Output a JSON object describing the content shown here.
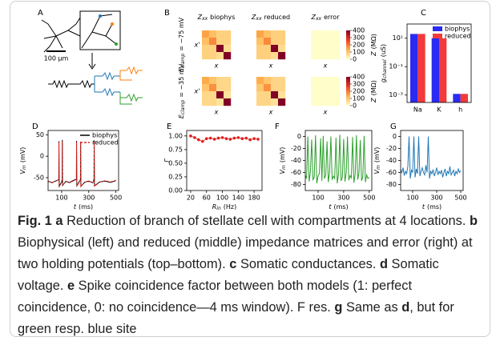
{
  "panel_labels": [
    "A",
    "B",
    "C",
    "D",
    "E",
    "F",
    "G"
  ],
  "panel_a": {
    "scale_bar": "100 μm"
  },
  "chart_data": [
    {
      "type": "heatmap",
      "col_titles": [
        {
          "symbol": "Z",
          "subscript": "xx",
          "text": "biophys"
        },
        {
          "symbol": "Z",
          "subscript": "xx",
          "text": "reduced"
        },
        {
          "symbol": "Z",
          "subscript": "xx",
          "text": "error"
        }
      ],
      "row_labels": [
        {
          "symbol": "E",
          "subscript": "clamp",
          "text": "= −75 mV"
        },
        {
          "symbol": "E",
          "subscript": "clamp",
          "text": "= −35 mV"
        }
      ],
      "xlabel": "x",
      "ylabel": "x'",
      "colorbar_label": {
        "symbol": "Z",
        "text": "(MΩ)"
      },
      "zlim": [
        0,
        400
      ],
      "zticks": [
        0,
        100,
        200,
        300,
        400
      ],
      "colormap": [
        "#ffffcc",
        "#feb24c",
        "#f03b20",
        "#800026"
      ],
      "matrices": [
        [
          [
            [
              150,
              110,
              80,
              80
            ],
            [
              110,
              180,
              80,
              80
            ],
            [
              80,
              80,
              420,
              60
            ],
            [
              80,
              80,
              60,
              420
            ]
          ],
          [
            [
              148,
              108,
              82,
              82
            ],
            [
              108,
              178,
              82,
              82
            ],
            [
              82,
              82,
              418,
              62
            ],
            [
              82,
              82,
              62,
              418
            ]
          ],
          [
            [
              3,
              2,
              2,
              2
            ],
            [
              2,
              3,
              2,
              2
            ],
            [
              2,
              2,
              4,
              2
            ],
            [
              2,
              2,
              2,
              4
            ]
          ]
        ],
        [
          [
            [
              140,
              100,
              70,
              70
            ],
            [
              100,
              170,
              70,
              70
            ],
            [
              70,
              70,
              400,
              50
            ],
            [
              70,
              70,
              50,
              400
            ]
          ],
          [
            [
              138,
              98,
              72,
              72
            ],
            [
              98,
              168,
              72,
              72
            ],
            [
              72,
              72,
              398,
              52
            ],
            [
              72,
              72,
              52,
              398
            ]
          ],
          [
            [
              4,
              3,
              2,
              2
            ],
            [
              3,
              4,
              2,
              2
            ],
            [
              2,
              2,
              5,
              3
            ],
            [
              2,
              2,
              3,
              5
            ]
          ]
        ]
      ]
    },
    {
      "type": "bar",
      "log_y": true,
      "categories": [
        "Na",
        "K",
        "h"
      ],
      "series": [
        {
          "name": "biophys",
          "color": "#2a2af2",
          "values": [
            20,
            10,
            0.0012
          ]
        },
        {
          "name": "reduced",
          "color": "#f23a3a",
          "values": [
            20,
            10,
            0.0012
          ]
        }
      ],
      "ylim": [
        0.0003,
        100
      ],
      "yticks": [
        {
          "value": 10,
          "label": "10¹"
        },
        {
          "value": 0.1,
          "label": "10⁻¹"
        },
        {
          "value": 0.001,
          "label": "10⁻³"
        }
      ],
      "ylabel": {
        "symbol": "g",
        "subscript": "channel",
        "text": "(uS)"
      },
      "legend": "upper right"
    },
    {
      "type": "line",
      "x": [
        0,
        30,
        60,
        79,
        80,
        82,
        100,
        104,
        105,
        107,
        130,
        160,
        190,
        209,
        210,
        212,
        235,
        239,
        240,
        242,
        270,
        300,
        330,
        339,
        340,
        342,
        380,
        420,
        460,
        500
      ],
      "series": [
        {
          "name": "biophys",
          "color": "#000000",
          "values": [
            -58,
            -62,
            -57,
            -55,
            35,
            -70,
            -60,
            -54,
            38,
            -68,
            -59,
            -61,
            -56,
            -54,
            36,
            -69,
            -57,
            -53,
            34,
            -70,
            -61,
            -58,
            -62,
            -54,
            37,
            -69,
            -60,
            -58,
            -61,
            -57
          ]
        },
        {
          "name": "reduced",
          "color": "#e0201c",
          "dashed": true,
          "values": [
            -59,
            -61,
            -58,
            -54,
            32,
            -71,
            -61,
            -55,
            35,
            -69,
            -58,
            -62,
            -57,
            -55,
            33,
            -70,
            -58,
            -54,
            31,
            -71,
            -60,
            -59,
            -61,
            -55,
            34,
            -70,
            -61,
            -57,
            -60,
            -56
          ]
        }
      ],
      "xlim": [
        0,
        520
      ],
      "xticks": [
        100,
        300,
        500
      ],
      "ylim": [
        -80,
        60
      ],
      "yticks": [
        -50,
        0,
        50
      ],
      "xlabel": {
        "symbol": "t",
        "text": "(ms)"
      },
      "ylabel": {
        "symbol": "V",
        "subscript": "m",
        "text": "(mV)"
      },
      "legend": "upper right"
    },
    {
      "type": "line",
      "markers": true,
      "x": [
        20,
        30,
        40,
        50,
        60,
        70,
        80,
        90,
        100,
        110,
        120,
        130,
        140,
        150,
        160,
        170,
        180,
        190
      ],
      "series": [
        {
          "color": "#e0201c",
          "values": [
            1.0,
            0.97,
            0.93,
            0.9,
            0.95,
            0.96,
            0.94,
            0.96,
            0.97,
            0.95,
            0.94,
            0.96,
            0.97,
            0.95,
            0.96,
            0.93,
            0.95,
            0.94
          ]
        }
      ],
      "xlim": [
        10,
        200
      ],
      "xticks": [
        20,
        60,
        100,
        140,
        180
      ],
      "ylim": [
        0,
        1.1
      ],
      "yticks": [
        {
          "value": 0,
          "label": "0.00"
        },
        {
          "value": 0.25,
          "label": "0.25"
        },
        {
          "value": 0.5,
          "label": "0.50"
        },
        {
          "value": 0.75,
          "label": "0.75"
        },
        {
          "value": 1,
          "label": "1.00"
        }
      ],
      "xlabel": {
        "symbol": "R",
        "subscript": "in",
        "text": "(Hz)"
      },
      "ylabel": {
        "symbol": "Γ"
      }
    },
    {
      "type": "line",
      "x": [
        0,
        10,
        20,
        30,
        40,
        50,
        60,
        70,
        80,
        90,
        100,
        110,
        120,
        130,
        140,
        150,
        160,
        170,
        180,
        190,
        200,
        210,
        220,
        230,
        240,
        250,
        260,
        270,
        280,
        290,
        300,
        310,
        320,
        330,
        340,
        350,
        360,
        370,
        380,
        390,
        400,
        410,
        420,
        430,
        440,
        450,
        460,
        470,
        480,
        490,
        500
      ],
      "series": [
        {
          "color": "#2ca02c",
          "values": [
            -65,
            -70,
            0,
            -75,
            -60,
            -5,
            -72,
            -68,
            2,
            -78,
            -66,
            -62,
            -3,
            -74,
            1,
            -70,
            -64,
            -8,
            -76,
            -60,
            0,
            -72,
            -66,
            -70,
            -2,
            -78,
            -62,
            3,
            -74,
            -68,
            -4,
            -75,
            -61,
            0,
            -73,
            -65,
            -69,
            -1,
            -77,
            -63,
            2,
            -72,
            -60,
            -6,
            -74,
            -67,
            1,
            -76,
            -64,
            -70,
            -68
          ]
        }
      ],
      "xlim": [
        0,
        520
      ],
      "xticks": [
        100,
        300,
        500
      ],
      "ylim": [
        -90,
        10
      ],
      "yticks": [
        -80,
        -60,
        -40,
        -20,
        0
      ],
      "xlabel": {
        "symbol": "t",
        "text": "(ms)"
      },
      "ylabel": {
        "symbol": "V",
        "subscript": "m",
        "text": "(mV)"
      }
    },
    {
      "type": "line",
      "x": [
        0,
        10,
        20,
        30,
        40,
        50,
        60,
        70,
        80,
        90,
        100,
        110,
        120,
        130,
        140,
        150,
        160,
        170,
        180,
        190,
        200,
        210,
        220,
        230,
        240,
        250,
        260,
        270,
        280,
        290,
        300,
        310,
        320,
        330,
        340,
        350,
        360,
        370,
        380,
        390,
        400,
        410,
        420,
        430,
        440,
        450,
        460,
        470,
        480,
        490,
        500
      ],
      "series": [
        {
          "color": "#1f77b4",
          "values": [
            -55,
            -60,
            -52,
            -65,
            -58,
            -62,
            -50,
            0,
            -70,
            -56,
            -60,
            0,
            -68,
            -54,
            -62,
            0,
            -66,
            -58,
            -52,
            -60,
            -64,
            -48,
            -60,
            0,
            -70,
            -58,
            -62,
            -55,
            -66,
            -60,
            -52,
            -64,
            -58,
            -62,
            -56,
            -68,
            -60,
            -54,
            -66,
            -58,
            -62,
            -50,
            -64,
            -60,
            -56,
            -66,
            -58,
            -62,
            -54,
            -60,
            -57
          ]
        }
      ],
      "xlim": [
        0,
        520
      ],
      "xticks": [
        100,
        300,
        500
      ],
      "ylim": [
        -90,
        10
      ],
      "yticks": [
        -80,
        -60,
        -40,
        -20,
        0
      ],
      "xlabel": {
        "symbol": "t",
        "text": "(ms)"
      },
      "ylabel": {
        "symbol": "V",
        "subscript": "m",
        "text": "(mV)"
      }
    }
  ],
  "caption": [
    {
      "text": "Fig. 1",
      "bold": true
    },
    {
      "text": "a",
      "bold": true
    },
    {
      "text": "Reduction of branch of stellate cell with compartments at 4 locations.",
      "bold": false
    },
    {
      "text": "b",
      "bold": true
    },
    {
      "text": "Biophysical (left) and reduced (middle) impedance matrices and error (right) at two holding potentials (top–bottom).",
      "bold": false
    },
    {
      "text": "c",
      "bold": true
    },
    {
      "text": "Somatic conductances.",
      "bold": false
    },
    {
      "text": "d",
      "bold": true
    },
    {
      "text": "Somatic voltage.",
      "bold": false
    },
    {
      "text": "e",
      "bold": true
    },
    {
      "text": "Spike coincidence factor between both models (1: perfect coincidence, 0: no coincidence—4 ms window). F res.",
      "bold": false
    },
    {
      "text": "g",
      "bold": true
    },
    {
      "text": "Same as",
      "bold": false
    },
    {
      "text": "d",
      "bold": true
    },
    {
      "text": ", but for green resp. blue site",
      "bold": false
    }
  ]
}
